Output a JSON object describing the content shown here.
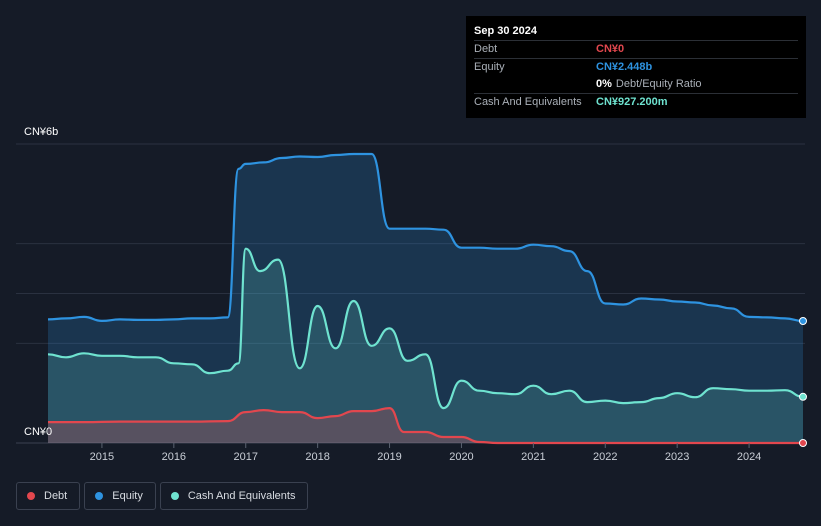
{
  "tooltip": {
    "date": "Sep 30 2024",
    "rows": [
      {
        "label": "Debt",
        "value": "CN¥0",
        "color": "#e2474e"
      },
      {
        "label": "Equity",
        "value": "CN¥2.448b",
        "color": "#2e93e0"
      },
      {
        "label": "",
        "value": "0%",
        "suffix": "Debt/Equity Ratio",
        "color": "#ffffff"
      },
      {
        "label": "Cash And Equivalents",
        "value": "CN¥927.200m",
        "color": "#6fe3d0"
      }
    ]
  },
  "legend": [
    {
      "label": "Debt",
      "color": "#e2474e"
    },
    {
      "label": "Equity",
      "color": "#2e93e0"
    },
    {
      "label": "Cash And Equivalents",
      "color": "#6fe3d0"
    }
  ],
  "chart_data": {
    "type": "area",
    "y_top_label": "CN¥6b",
    "y_bottom_label": "CN¥0",
    "ylim": [
      0,
      6
    ],
    "xlim": [
      2014.25,
      2024.75
    ],
    "x_ticks": [
      "2015",
      "2016",
      "2017",
      "2018",
      "2019",
      "2020",
      "2021",
      "2022",
      "2023",
      "2024"
    ],
    "grid": true,
    "units": "CN¥ billions",
    "series": [
      {
        "name": "Equity",
        "color": "#2e93e0",
        "points": [
          [
            2014.25,
            2.48
          ],
          [
            2014.5,
            2.5
          ],
          [
            2014.75,
            2.53
          ],
          [
            2015.0,
            2.45
          ],
          [
            2015.25,
            2.48
          ],
          [
            2015.5,
            2.47
          ],
          [
            2015.75,
            2.47
          ],
          [
            2016.0,
            2.48
          ],
          [
            2016.25,
            2.5
          ],
          [
            2016.5,
            2.5
          ],
          [
            2016.75,
            2.52
          ],
          [
            2016.9,
            5.5
          ],
          [
            2017.0,
            5.6
          ],
          [
            2017.25,
            5.63
          ],
          [
            2017.5,
            5.72
          ],
          [
            2017.75,
            5.75
          ],
          [
            2018.0,
            5.74
          ],
          [
            2018.25,
            5.78
          ],
          [
            2018.5,
            5.8
          ],
          [
            2018.75,
            5.8
          ],
          [
            2019.0,
            4.3
          ],
          [
            2019.25,
            4.3
          ],
          [
            2019.5,
            4.3
          ],
          [
            2019.75,
            4.28
          ],
          [
            2020.0,
            3.92
          ],
          [
            2020.25,
            3.92
          ],
          [
            2020.5,
            3.9
          ],
          [
            2020.75,
            3.9
          ],
          [
            2021.0,
            3.98
          ],
          [
            2021.25,
            3.95
          ],
          [
            2021.5,
            3.85
          ],
          [
            2021.75,
            3.45
          ],
          [
            2022.0,
            2.8
          ],
          [
            2022.25,
            2.78
          ],
          [
            2022.5,
            2.9
          ],
          [
            2022.75,
            2.88
          ],
          [
            2023.0,
            2.84
          ],
          [
            2023.25,
            2.82
          ],
          [
            2023.5,
            2.76
          ],
          [
            2023.75,
            2.7
          ],
          [
            2024.0,
            2.53
          ],
          [
            2024.25,
            2.52
          ],
          [
            2024.5,
            2.5
          ],
          [
            2024.75,
            2.448
          ]
        ]
      },
      {
        "name": "Cash And Equivalents",
        "color": "#6fe3d0",
        "points": [
          [
            2014.25,
            1.78
          ],
          [
            2014.5,
            1.72
          ],
          [
            2014.75,
            1.8
          ],
          [
            2015.0,
            1.75
          ],
          [
            2015.25,
            1.75
          ],
          [
            2015.5,
            1.72
          ],
          [
            2015.75,
            1.72
          ],
          [
            2016.0,
            1.6
          ],
          [
            2016.25,
            1.58
          ],
          [
            2016.5,
            1.4
          ],
          [
            2016.75,
            1.45
          ],
          [
            2016.9,
            1.6
          ],
          [
            2017.0,
            3.9
          ],
          [
            2017.2,
            3.45
          ],
          [
            2017.45,
            3.68
          ],
          [
            2017.75,
            1.5
          ],
          [
            2018.0,
            2.75
          ],
          [
            2018.25,
            1.9
          ],
          [
            2018.5,
            2.85
          ],
          [
            2018.75,
            1.95
          ],
          [
            2019.0,
            2.3
          ],
          [
            2019.25,
            1.65
          ],
          [
            2019.5,
            1.78
          ],
          [
            2019.75,
            0.7
          ],
          [
            2020.0,
            1.25
          ],
          [
            2020.25,
            1.05
          ],
          [
            2020.5,
            1.0
          ],
          [
            2020.75,
            0.98
          ],
          [
            2021.0,
            1.15
          ],
          [
            2021.25,
            0.98
          ],
          [
            2021.5,
            1.05
          ],
          [
            2021.75,
            0.82
          ],
          [
            2022.0,
            0.85
          ],
          [
            2022.25,
            0.8
          ],
          [
            2022.5,
            0.82
          ],
          [
            2022.75,
            0.9
          ],
          [
            2023.0,
            1.0
          ],
          [
            2023.25,
            0.92
          ],
          [
            2023.5,
            1.1
          ],
          [
            2023.75,
            1.08
          ],
          [
            2024.0,
            1.05
          ],
          [
            2024.25,
            1.05
          ],
          [
            2024.5,
            1.06
          ],
          [
            2024.75,
            0.9272
          ]
        ]
      },
      {
        "name": "Debt",
        "color": "#e2474e",
        "points": [
          [
            2014.25,
            0.42
          ],
          [
            2014.75,
            0.42
          ],
          [
            2015.25,
            0.43
          ],
          [
            2015.75,
            0.43
          ],
          [
            2016.25,
            0.43
          ],
          [
            2016.75,
            0.44
          ],
          [
            2017.0,
            0.62
          ],
          [
            2017.25,
            0.66
          ],
          [
            2017.5,
            0.62
          ],
          [
            2017.75,
            0.62
          ],
          [
            2018.0,
            0.5
          ],
          [
            2018.25,
            0.54
          ],
          [
            2018.5,
            0.64
          ],
          [
            2018.75,
            0.64
          ],
          [
            2019.0,
            0.7
          ],
          [
            2019.2,
            0.22
          ],
          [
            2019.5,
            0.22
          ],
          [
            2019.75,
            0.12
          ],
          [
            2020.0,
            0.12
          ],
          [
            2020.25,
            0.02
          ],
          [
            2020.5,
            0.0
          ],
          [
            2021.0,
            0.0
          ],
          [
            2022.0,
            0.0
          ],
          [
            2023.0,
            0.0
          ],
          [
            2024.0,
            0.0
          ],
          [
            2024.75,
            0.0
          ]
        ]
      }
    ]
  }
}
